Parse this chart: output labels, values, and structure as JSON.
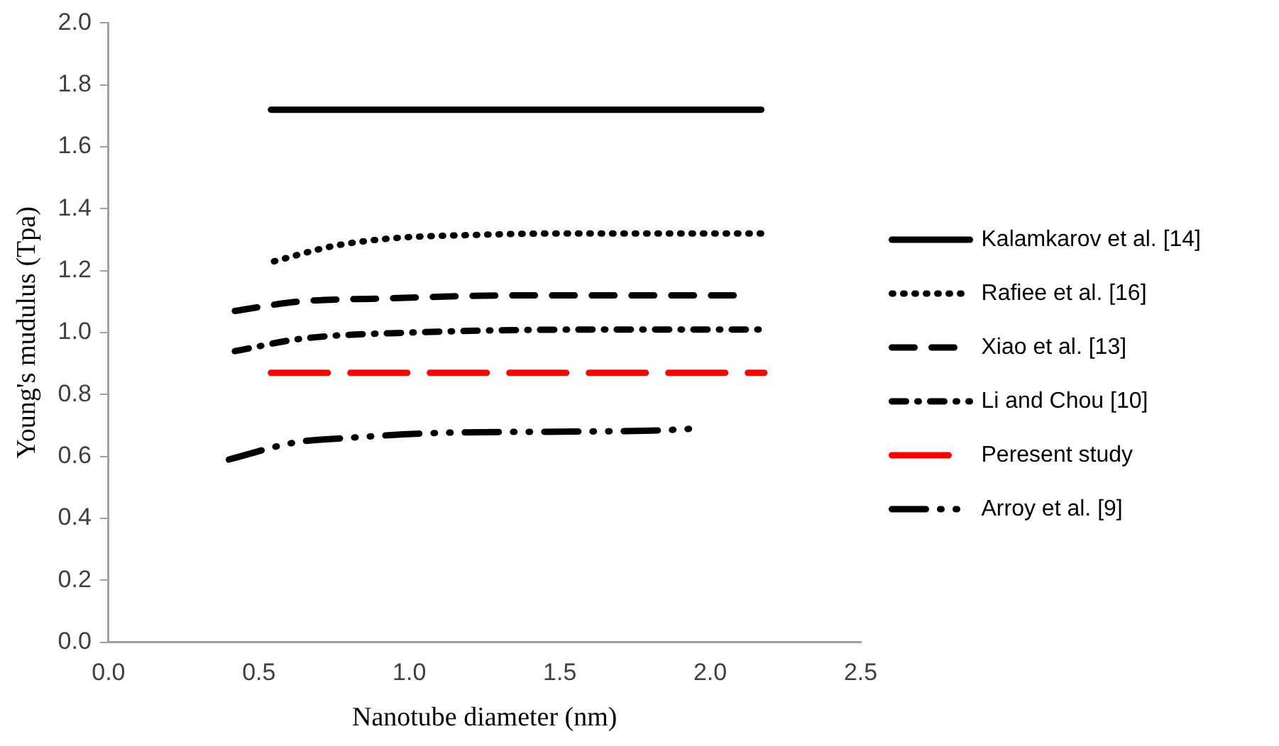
{
  "chart_data": {
    "type": "line",
    "xlabel": "Nanotube diameter (nm)",
    "ylabel": "Young's mudulus (Tpa)",
    "xlim": [
      0,
      2.5
    ],
    "xticks": [
      {
        "value": 0,
        "label": "0.0"
      },
      {
        "value": 0.5,
        "label": "0.5"
      },
      {
        "value": 1,
        "label": "1.0"
      },
      {
        "value": 1.5,
        "label": "1.5"
      },
      {
        "value": 2,
        "label": "2.0"
      },
      {
        "value": 2.5,
        "label": "2.5"
      }
    ],
    "ylim": [
      0,
      2
    ],
    "yticks": [
      {
        "value": 0,
        "label": "0.0"
      },
      {
        "value": 0.2,
        "label": "0.2"
      },
      {
        "value": 0.4,
        "label": "0.4"
      },
      {
        "value": 0.6,
        "label": "0.6"
      },
      {
        "value": 0.8,
        "label": "0.8"
      },
      {
        "value": 1,
        "label": "1.0"
      },
      {
        "value": 1.2,
        "label": "1.2"
      },
      {
        "value": 1.4,
        "label": "1.4"
      },
      {
        "value": 1.6,
        "label": "1.6"
      },
      {
        "value": 1.8,
        "label": "1.8"
      },
      {
        "value": 2,
        "label": "2.0"
      }
    ],
    "grid": false,
    "legend": "right",
    "marker": "none",
    "series": [
      {
        "name": "Kalamkarov et al. [14]",
        "color": "#000000",
        "line_style": "solid",
        "x": [
          0.54,
          2.17
        ],
        "values": [
          1.72,
          1.72
        ]
      },
      {
        "name": "Rafiee et al. [16]",
        "color": "#000000",
        "line_style": "dotted",
        "x": [
          0.55,
          0.75,
          0.95,
          1.2,
          1.5,
          1.8,
          2.17
        ],
        "values": [
          1.23,
          1.28,
          1.305,
          1.315,
          1.32,
          1.32,
          1.32
        ]
      },
      {
        "name": "Xiao et al. [13]",
        "color": "#000000",
        "line_style": "dashed",
        "x": [
          0.42,
          0.63,
          0.91,
          1.35,
          1.7,
          2.08
        ],
        "values": [
          1.07,
          1.1,
          1.11,
          1.12,
          1.12,
          1.12
        ]
      },
      {
        "name": "Li and Chou [10]",
        "color": "#000000",
        "line_style": "dashdot",
        "x": [
          0.42,
          0.64,
          1.0,
          1.68,
          2.18
        ],
        "values": [
          0.94,
          0.98,
          1.0,
          1.01,
          1.01
        ]
      },
      {
        "name": "Peresent study",
        "color": "#ff0000",
        "line_style": "longdash",
        "x": [
          0.54,
          2.18
        ],
        "values": [
          0.87,
          0.87
        ]
      },
      {
        "name": "Arroy et al. [9]",
        "color": "#000000",
        "line_style": "longdashdotdot",
        "x": [
          0.4,
          0.62,
          0.8,
          1.1,
          1.5,
          1.83,
          1.95
        ],
        "values": [
          0.59,
          0.645,
          0.66,
          0.676,
          0.68,
          0.684,
          0.69
        ]
      }
    ]
  }
}
